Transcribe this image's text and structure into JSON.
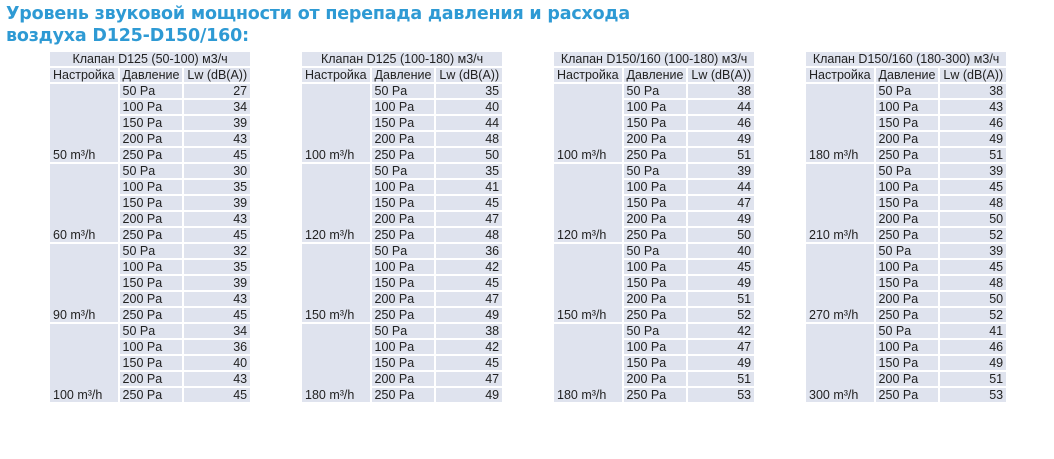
{
  "title_line1": "Уровень звуковой мощности от перепада давления и расхода",
  "title_line2": "воздуха D125-D150/160:",
  "headers": {
    "setting": "Настройка",
    "pressure": "Давление",
    "lw": "Lw (dB(A))"
  },
  "pressures": [
    "50 Pa",
    "100 Pa",
    "150 Pa",
    "200 Pa",
    "250 Pa"
  ],
  "tables": [
    {
      "caption": "Клапан D125 (50-100) м3/ч",
      "groups": [
        {
          "setting": "50 m³/h",
          "lw": [
            27,
            34,
            39,
            43,
            45
          ]
        },
        {
          "setting": "60 m³/h",
          "lw": [
            30,
            35,
            39,
            43,
            45
          ]
        },
        {
          "setting": "90 m³/h",
          "lw": [
            32,
            35,
            39,
            43,
            45
          ]
        },
        {
          "setting": "100 m³/h",
          "lw": [
            34,
            36,
            40,
            43,
            45
          ]
        }
      ]
    },
    {
      "caption": "Клапан D125 (100-180) м3/ч",
      "groups": [
        {
          "setting": "100 m³/h",
          "lw": [
            35,
            40,
            44,
            48,
            50
          ]
        },
        {
          "setting": "120 m³/h",
          "lw": [
            35,
            41,
            45,
            47,
            48
          ]
        },
        {
          "setting": "150 m³/h",
          "lw": [
            36,
            42,
            45,
            47,
            49
          ]
        },
        {
          "setting": "180 m³/h",
          "lw": [
            38,
            42,
            45,
            47,
            49
          ]
        }
      ]
    },
    {
      "caption": "Клапан D150/160 (100-180) м3/ч",
      "groups": [
        {
          "setting": "100 m³/h",
          "lw": [
            38,
            44,
            46,
            49,
            51
          ]
        },
        {
          "setting": "120 m³/h",
          "lw": [
            39,
            44,
            47,
            49,
            50
          ]
        },
        {
          "setting": "150 m³/h",
          "lw": [
            40,
            45,
            49,
            51,
            52
          ]
        },
        {
          "setting": "180 m³/h",
          "lw": [
            42,
            47,
            49,
            51,
            53
          ]
        }
      ]
    },
    {
      "caption": "Клапан D150/160 (180-300) м3/ч",
      "groups": [
        {
          "setting": "180 m³/h",
          "lw": [
            38,
            43,
            46,
            49,
            51
          ]
        },
        {
          "setting": "210 m³/h",
          "lw": [
            39,
            45,
            48,
            50,
            52
          ]
        },
        {
          "setting": "270 m³/h",
          "lw": [
            39,
            45,
            48,
            50,
            52
          ]
        },
        {
          "setting": "300 m³/h",
          "lw": [
            41,
            46,
            49,
            51,
            53
          ]
        }
      ]
    }
  ]
}
